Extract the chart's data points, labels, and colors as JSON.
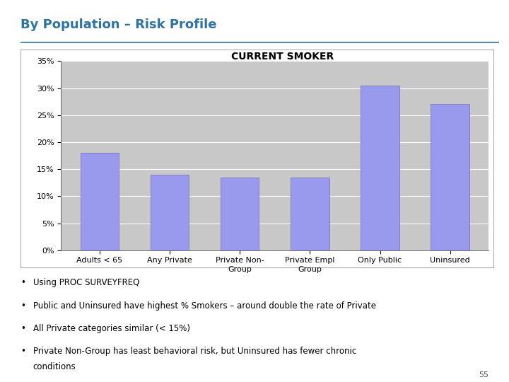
{
  "title": "By Population – Risk Profile",
  "chart_title": "CURRENT SMOKER",
  "categories": [
    "Adults < 65",
    "Any Private",
    "Private Non-\nGroup",
    "Private Empl\nGroup",
    "Only Public",
    "Uninsured"
  ],
  "values": [
    18.0,
    14.0,
    13.5,
    13.5,
    30.5,
    27.0
  ],
  "bar_color": "#9999EE",
  "bar_edge_color": "#7777BB",
  "ylim": [
    0,
    0.35
  ],
  "yticks": [
    0.0,
    0.05,
    0.1,
    0.15,
    0.2,
    0.25,
    0.3,
    0.35
  ],
  "ytick_labels": [
    "0%",
    "5%",
    "10%",
    "15%",
    "20%",
    "25%",
    "30%",
    "35%"
  ],
  "chart_bg": "#C8C8C8",
  "chart_border": "#888888",
  "outer_bg": "#FFFFFF",
  "title_color": "#2E74A0",
  "title_underline_color": "#2E74A0",
  "title_fontsize": 13,
  "chart_title_fontsize": 10,
  "tick_fontsize": 8,
  "bullet_points": [
    "Using PROC SURVEYFREQ",
    "Public and Uninsured have highest % Smokers – around double the rate of Private",
    "All Private categories similar (< 15%)",
    "Private Non-Group has least behavioral risk, but Uninsured has fewer chronic\nconditions"
  ],
  "bullet_fontsize": 8.5,
  "page_number": "55"
}
